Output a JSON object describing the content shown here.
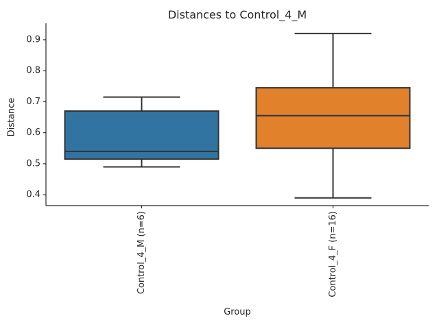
{
  "chart_data": {
    "type": "boxplot",
    "title": "Distances to Control_4_M",
    "xlabel": "Group",
    "ylabel": "Distance",
    "categories": [
      "Control_4_M (n=6)",
      "Control_4_F (n=16)"
    ],
    "series": [
      {
        "name": "Control_4_M (n=6)",
        "color": "#3274a1",
        "whisker_low": 0.49,
        "q1": 0.515,
        "median": 0.54,
        "q3": 0.67,
        "whisker_high": 0.715
      },
      {
        "name": "Control_4_F (n=16)",
        "color": "#e1812c",
        "whisker_low": 0.39,
        "q1": 0.55,
        "median": 0.655,
        "q3": 0.745,
        "whisker_high": 0.92
      }
    ],
    "yticks": [
      "0.4",
      "0.5",
      "0.6",
      "0.7",
      "0.8",
      "0.9"
    ],
    "ylim": [
      0.365,
      0.953
    ],
    "grid": false,
    "legend": null,
    "x_tick_rotation": 90,
    "line_color": "#333333",
    "spine_color": "#262626",
    "text_color": "#262626"
  }
}
